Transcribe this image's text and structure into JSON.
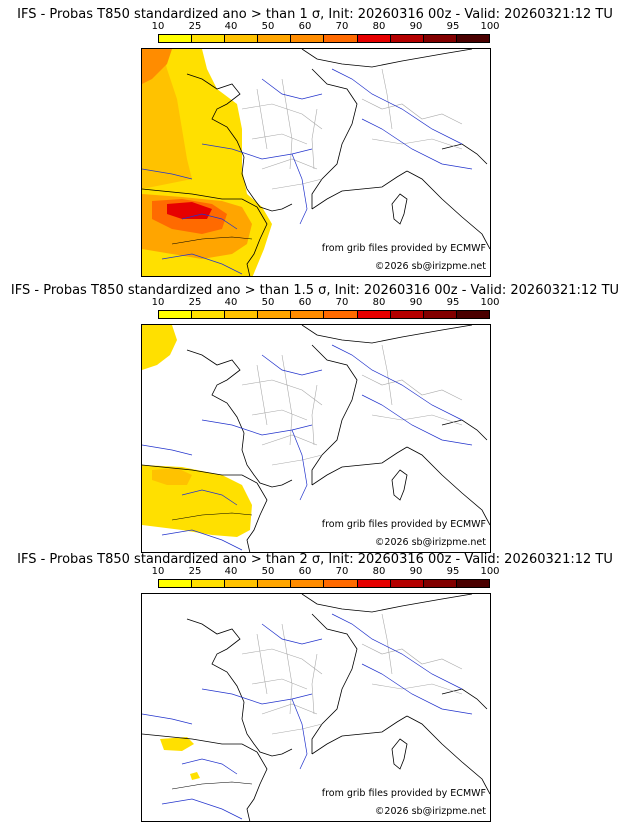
{
  "colorbar": {
    "labels": [
      "10",
      "25",
      "40",
      "50",
      "60",
      "70",
      "80",
      "90",
      "95",
      "100"
    ],
    "colors": [
      "#ffff00",
      "#ffe000",
      "#ffc200",
      "#ffa500",
      "#ff8c00",
      "#ff6a00",
      "#e60000",
      "#b40000",
      "#820000",
      "#4a0000"
    ]
  },
  "panels": [
    {
      "title": "IFS - Probas T850  standardized ano > than 1 σ, Init: 20260316 00z - Valid: 20260321:12 TU",
      "threshold": "1 σ",
      "credit_source": "from grib files provided by ECMWF",
      "credit_copyright": "©2026 sb@irizpme.net"
    },
    {
      "title": "IFS - Probas T850  standardized ano > than 1.5 σ, Init: 20260316 00z - Valid: 20260321:12 TU",
      "threshold": "1.5 σ",
      "credit_source": "from grib files provided by ECMWF",
      "credit_copyright": "©2026 sb@irizpme.net"
    },
    {
      "title": "IFS - Probas T850  standardized ano > than 2 σ, Init: 20260316 00z - Valid: 20260321:12 TU",
      "threshold": "2 σ",
      "credit_source": "from grib files provided by ECMWF",
      "credit_copyright": "©2026 sb@irizpme.net"
    }
  ]
}
